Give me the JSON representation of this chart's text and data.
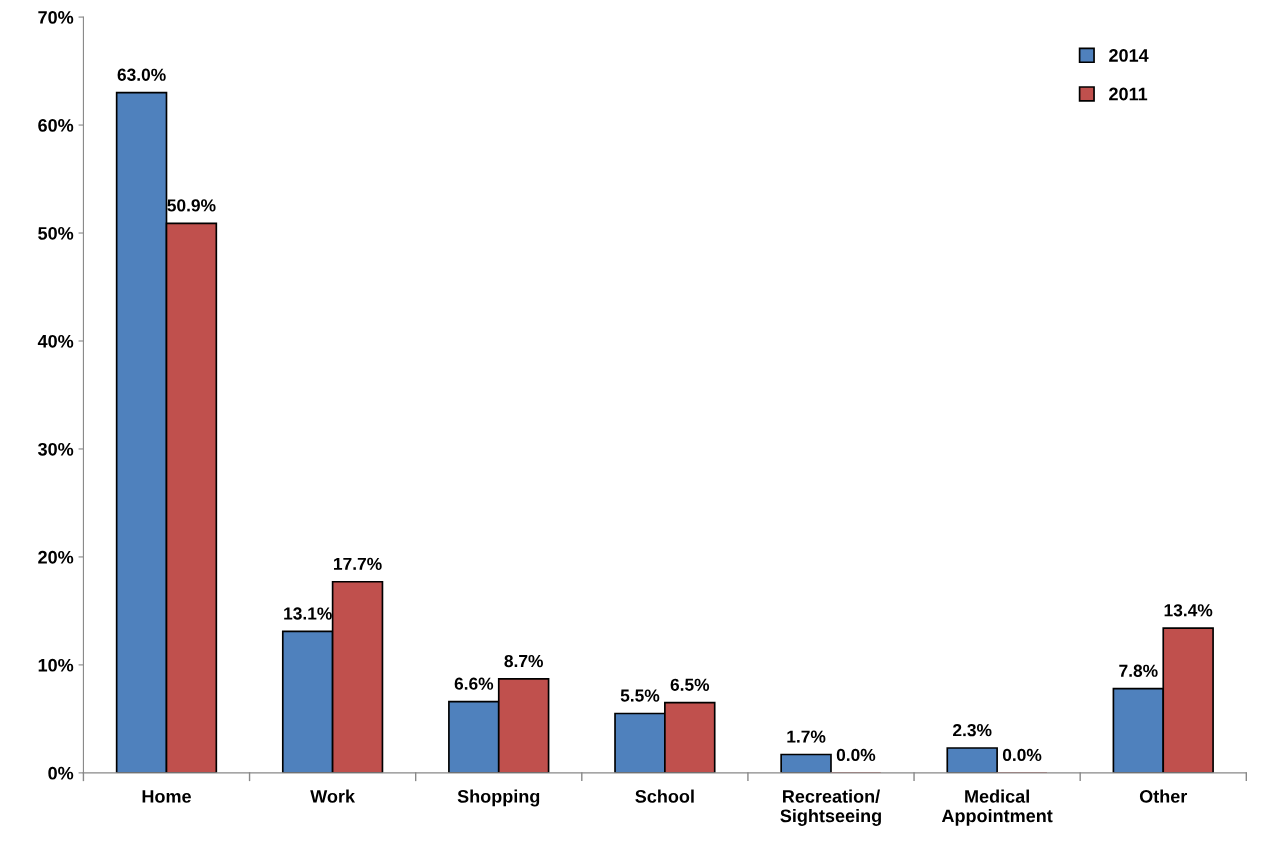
{
  "chart_data": {
    "type": "bar",
    "categories": [
      "Home",
      "Work",
      "Shopping",
      "School",
      "Recreation/\nSightseeing",
      "Medical\nAppointment",
      "Other"
    ],
    "series": [
      {
        "name": "2014",
        "color": "#4f81bd",
        "values": [
          63.0,
          13.1,
          6.6,
          5.5,
          1.7,
          2.3,
          7.8
        ],
        "value_labels": [
          "63.0%",
          "13.1%",
          "6.6%",
          "5.5%",
          "1.7%",
          "2.3%",
          "7.8%"
        ]
      },
      {
        "name": "2011",
        "color": "#c0504d",
        "values": [
          50.9,
          17.7,
          8.7,
          6.5,
          0.0,
          0.0,
          13.4
        ],
        "value_labels": [
          "50.9%",
          "17.7%",
          "8.7%",
          "6.5%",
          "0.0%",
          "0.0%",
          "13.4%"
        ]
      }
    ],
    "ylim": [
      0,
      70
    ],
    "yticks": [
      {
        "value": 0,
        "label": "0%"
      },
      {
        "value": 10,
        "label": "10%"
      },
      {
        "value": 20,
        "label": "20%"
      },
      {
        "value": 30,
        "label": "30%"
      },
      {
        "value": 40,
        "label": "40%"
      },
      {
        "value": 50,
        "label": "50%"
      },
      {
        "value": 60,
        "label": "60%"
      },
      {
        "value": 70,
        "label": "70%"
      }
    ],
    "grid": false,
    "legend": "top right"
  }
}
